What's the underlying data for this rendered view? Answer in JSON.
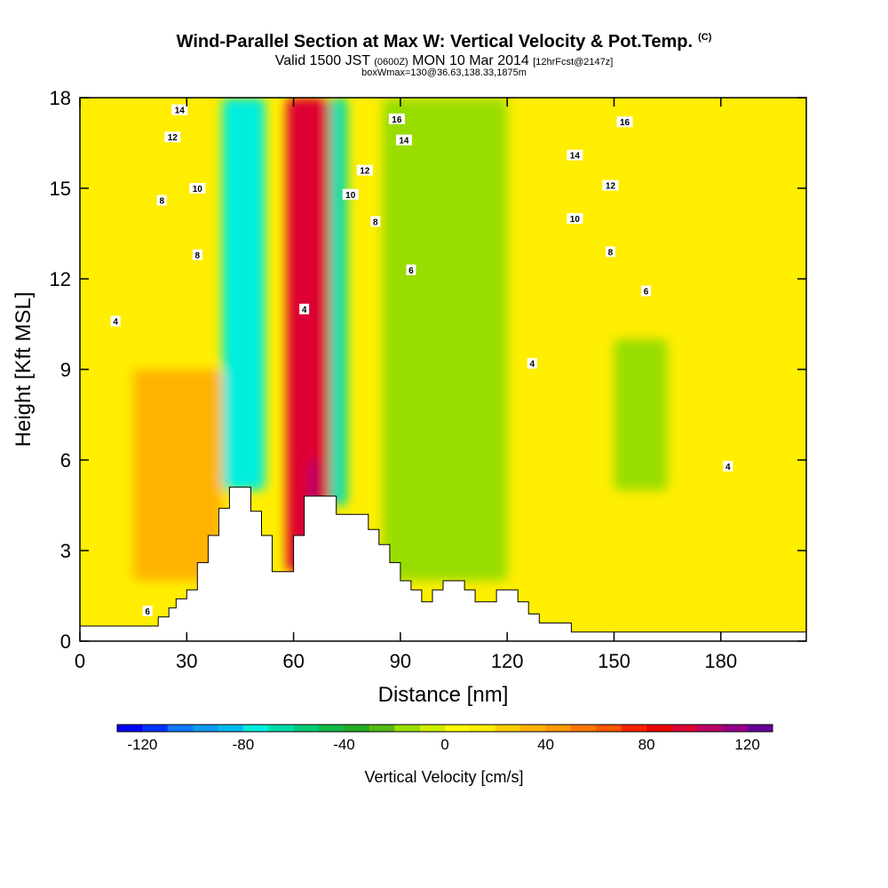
{
  "title": {
    "main": "Wind-Parallel Section at Max W: Vertical Velocity & Pot.Temp.",
    "copyright": "(C)",
    "valid": "Valid 1500 JST",
    "valid_utc": "(0600Z)",
    "valid_date": "MON 10 Mar 2014",
    "forecast": "[12hrFcst@2147z]",
    "box_info": "boxWmax=130@36.63,138.33,1875m"
  },
  "chart_data": {
    "type": "heatmap",
    "xlabel": "Distance [nm]",
    "ylabel": "Height [Kft MSL]",
    "xlim": [
      0,
      204
    ],
    "ylim": [
      0,
      18
    ],
    "x_ticks": [
      0,
      30,
      60,
      90,
      120,
      150,
      180
    ],
    "y_ticks": [
      0,
      3,
      6,
      9,
      12,
      15,
      18
    ],
    "colorbar": {
      "label": "Vertical Velocity [cm/s]",
      "min": -130,
      "max": 130,
      "step": 10,
      "tick_values": [
        -120,
        -80,
        -40,
        0,
        40,
        80,
        120
      ],
      "colors": [
        "#0000ff",
        "#0033ff",
        "#1177ff",
        "#1199ee",
        "#00bbee",
        "#00eedd",
        "#00ddaa",
        "#00cc77",
        "#11bb44",
        "#22aa22",
        "#55bb11",
        "#99dd00",
        "#ccee00",
        "#ffff00",
        "#ffee00",
        "#ffcc00",
        "#ffb300",
        "#ff9900",
        "#ff7700",
        "#ff5500",
        "#ff2200",
        "#ee0000",
        "#dd0033",
        "#bb0066",
        "#990088",
        "#660099"
      ]
    },
    "velocity_features": [
      {
        "x": [
          40,
          52
        ],
        "y": [
          5.0,
          18
        ],
        "w": -80,
        "kind": "downdraft band"
      },
      {
        "x": [
          58,
          70
        ],
        "y": [
          2.3,
          18
        ],
        "w": 90,
        "kind": "updraft band"
      },
      {
        "x": [
          70,
          75
        ],
        "y": [
          4.5,
          18
        ],
        "w": -70,
        "kind": "downdraft band"
      },
      {
        "x": [
          65,
          66
        ],
        "y": [
          2.5,
          6
        ],
        "w": 130,
        "kind": "wave maximum"
      },
      {
        "x": [
          15,
          40
        ],
        "y": [
          2,
          9
        ],
        "w": 30,
        "kind": "updraft region"
      },
      {
        "x": [
          85,
          120
        ],
        "y": [
          2,
          18
        ],
        "w": -25,
        "kind": "downdraft region"
      },
      {
        "x": [
          150,
          165
        ],
        "y": [
          5,
          10
        ],
        "w": -20,
        "kind": "downdraft region"
      }
    ],
    "theta_contours": {
      "interval": 2,
      "labels": [
        {
          "x": 28,
          "y": 17.6,
          "text": "14"
        },
        {
          "x": 26,
          "y": 16.7,
          "text": "12"
        },
        {
          "x": 23,
          "y": 14.6,
          "text": "8"
        },
        {
          "x": 33,
          "y": 15.0,
          "text": "10"
        },
        {
          "x": 33,
          "y": 12.8,
          "text": "8"
        },
        {
          "x": 10,
          "y": 10.6,
          "text": "4"
        },
        {
          "x": 63,
          "y": 11.0,
          "text": "4"
        },
        {
          "x": 89,
          "y": 17.3,
          "text": "16"
        },
        {
          "x": 91,
          "y": 16.6,
          "text": "14"
        },
        {
          "x": 80,
          "y": 15.6,
          "text": "12"
        },
        {
          "x": 76,
          "y": 14.8,
          "text": "10"
        },
        {
          "x": 83,
          "y": 13.9,
          "text": "8"
        },
        {
          "x": 93,
          "y": 12.3,
          "text": "6"
        },
        {
          "x": 127,
          "y": 9.2,
          "text": "4"
        },
        {
          "x": 153,
          "y": 17.2,
          "text": "16"
        },
        {
          "x": 139,
          "y": 16.1,
          "text": "14"
        },
        {
          "x": 149,
          "y": 15.1,
          "text": "12"
        },
        {
          "x": 139,
          "y": 14.0,
          "text": "10"
        },
        {
          "x": 149,
          "y": 12.9,
          "text": "8"
        },
        {
          "x": 159,
          "y": 11.6,
          "text": "6"
        },
        {
          "x": 182,
          "y": 5.8,
          "text": "4"
        },
        {
          "x": 19,
          "y": 1.0,
          "text": "6"
        }
      ]
    },
    "terrain": [
      [
        0,
        0.5
      ],
      [
        20,
        0.5
      ],
      [
        22,
        0.5
      ],
      [
        22,
        0.8
      ],
      [
        25,
        0.8
      ],
      [
        25,
        1.1
      ],
      [
        27,
        1.1
      ],
      [
        27,
        1.4
      ],
      [
        30,
        1.4
      ],
      [
        30,
        1.7
      ],
      [
        33,
        1.7
      ],
      [
        33,
        2.6
      ],
      [
        36,
        2.6
      ],
      [
        36,
        3.5
      ],
      [
        39,
        3.5
      ],
      [
        39,
        4.4
      ],
      [
        42,
        4.4
      ],
      [
        42,
        5.1
      ],
      [
        48,
        5.1
      ],
      [
        48,
        4.3
      ],
      [
        51,
        4.3
      ],
      [
        51,
        3.5
      ],
      [
        54,
        3.5
      ],
      [
        54,
        2.3
      ],
      [
        60,
        2.3
      ],
      [
        60,
        3.5
      ],
      [
        63,
        3.5
      ],
      [
        63,
        4.8
      ],
      [
        72,
        4.8
      ],
      [
        72,
        4.2
      ],
      [
        81,
        4.2
      ],
      [
        81,
        3.7
      ],
      [
        84,
        3.7
      ],
      [
        84,
        3.2
      ],
      [
        87,
        3.2
      ],
      [
        87,
        2.6
      ],
      [
        90,
        2.6
      ],
      [
        90,
        2.0
      ],
      [
        93,
        2.0
      ],
      [
        93,
        1.7
      ],
      [
        96,
        1.7
      ],
      [
        96,
        1.3
      ],
      [
        99,
        1.3
      ],
      [
        99,
        1.7
      ],
      [
        102,
        1.7
      ],
      [
        102,
        2.0
      ],
      [
        108,
        2.0
      ],
      [
        108,
        1.7
      ],
      [
        111,
        1.7
      ],
      [
        111,
        1.3
      ],
      [
        117,
        1.3
      ],
      [
        117,
        1.7
      ],
      [
        123,
        1.7
      ],
      [
        123,
        1.3
      ],
      [
        126,
        1.3
      ],
      [
        126,
        0.9
      ],
      [
        129,
        0.9
      ],
      [
        129,
        0.6
      ],
      [
        138,
        0.6
      ],
      [
        138,
        0.3
      ],
      [
        204,
        0.3
      ]
    ]
  }
}
